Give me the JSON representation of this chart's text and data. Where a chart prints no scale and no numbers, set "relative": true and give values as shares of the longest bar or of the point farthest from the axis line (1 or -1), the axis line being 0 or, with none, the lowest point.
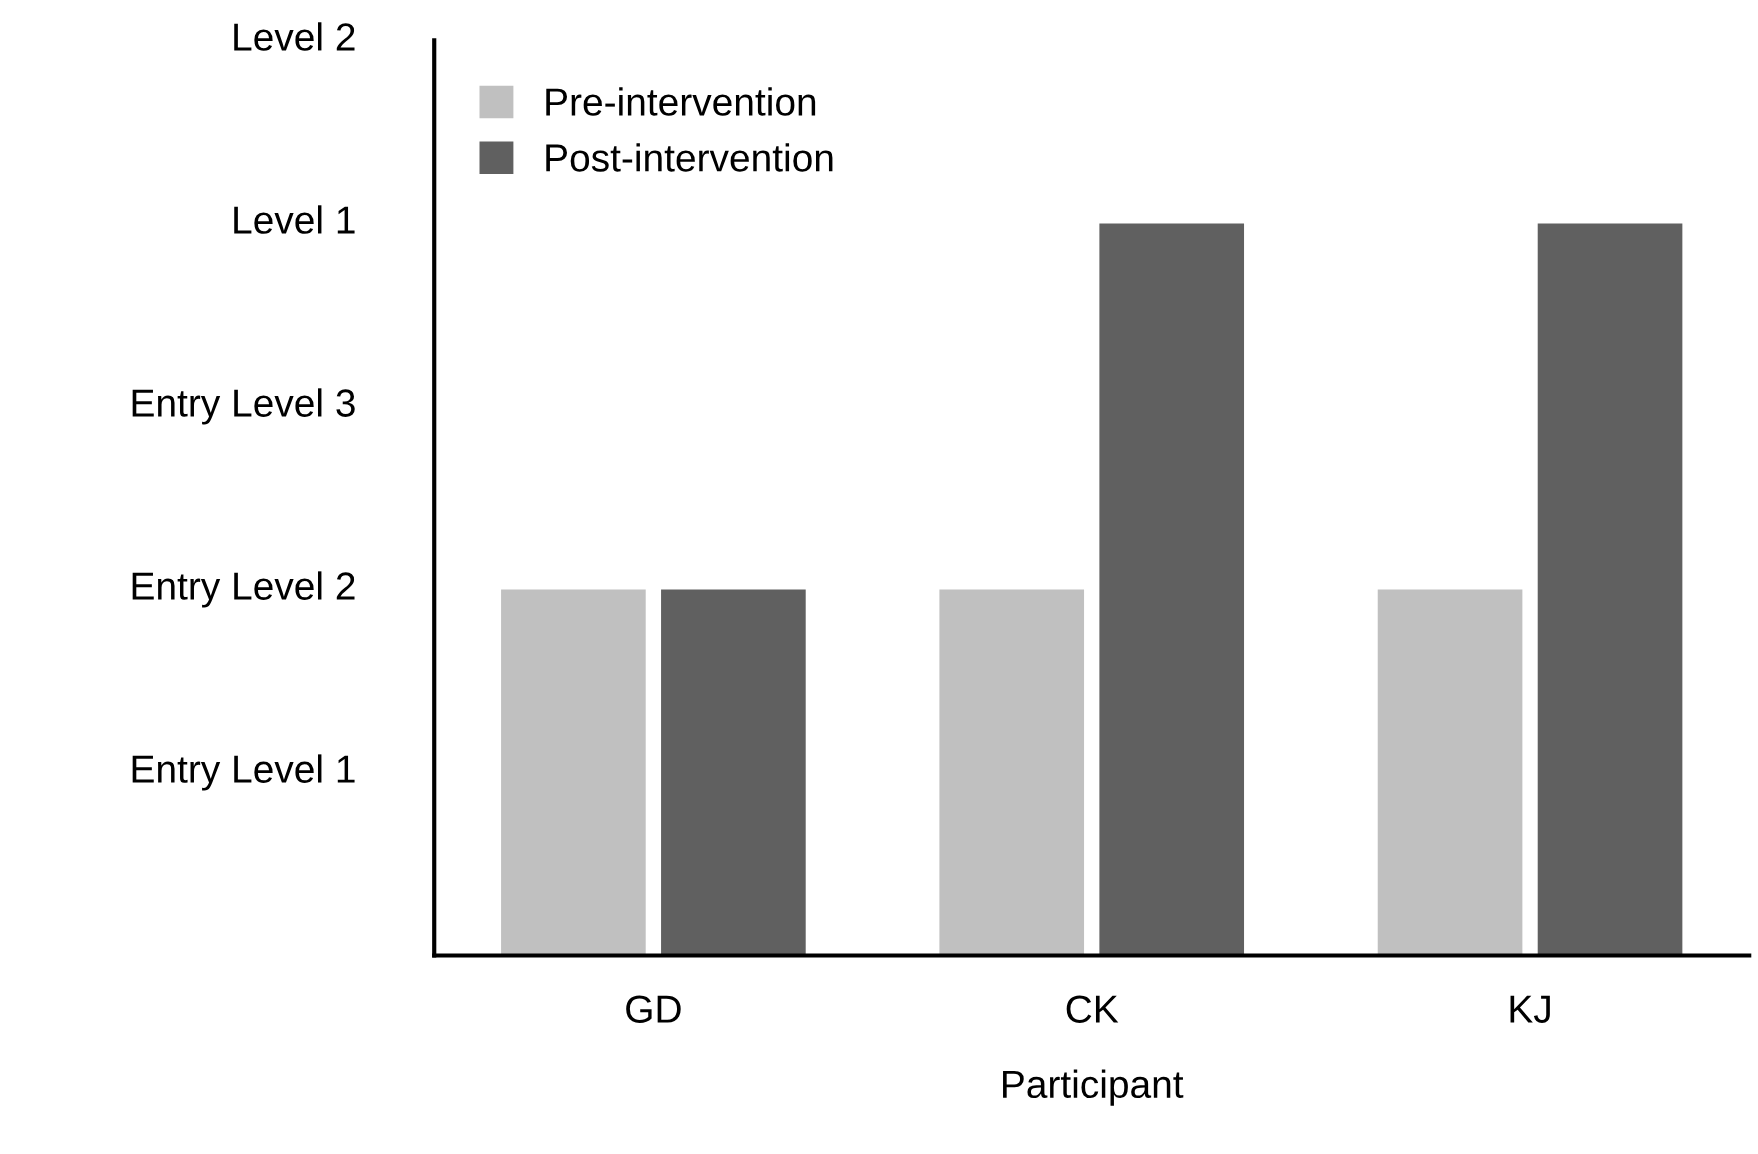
{
  "chart_data": {
    "type": "bar",
    "xlabel": "Participant",
    "relative": true,
    "categories": [
      "GD",
      "CK",
      "KJ"
    ],
    "series": [
      {
        "name": "Pre-intervention",
        "color": "#c0c0c0",
        "values": [
          0.5,
          0.5,
          0.5
        ]
      },
      {
        "name": "Post-intervention",
        "color": "#606060",
        "values": [
          0.5,
          1,
          1
        ]
      }
    ],
    "annotations": [
      "Entry Level 1",
      "Entry Level 2",
      "Entry Level 3",
      "Level 1",
      "Level 2"
    ],
    "grid": false,
    "legend": "top left"
  }
}
